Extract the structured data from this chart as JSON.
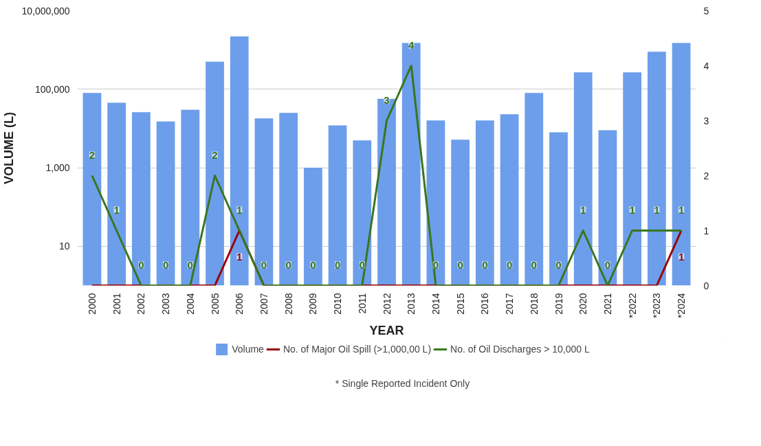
{
  "chart_data": {
    "type": "bar",
    "xlabel": "YEAR",
    "ylabel": "VOLUME (L)",
    "categories": [
      "2000",
      "2001",
      "2002",
      "2003",
      "2004",
      "2005",
      "2006",
      "2007",
      "2008",
      "2009",
      "2010",
      "2011",
      "2012",
      "2013",
      "2014",
      "2015",
      "2016",
      "2017",
      "2018",
      "2019",
      "2020",
      "2021",
      "*2022",
      "*2023",
      "*2024"
    ],
    "series": [
      {
        "name": "Volume",
        "color": "#6d9eeb",
        "values": [
          80000,
          45000,
          26000,
          15000,
          30000,
          500000,
          2200000,
          18000,
          25000,
          1000,
          12000,
          5000,
          57000,
          1500000,
          16000,
          5200,
          16000,
          23000,
          80000,
          8000,
          270000,
          9000,
          270000,
          900000,
          1500000
        ]
      },
      {
        "name": "No. of Major Oil Spill (>1,000,00 L)",
        "type": "line",
        "axis": "y2",
        "color": "#990000",
        "values": [
          0,
          0,
          0,
          0,
          0,
          0,
          1,
          0,
          0,
          0,
          0,
          0,
          0,
          0,
          0,
          0,
          0,
          0,
          0,
          0,
          0,
          0,
          0,
          0,
          1
        ],
        "value_labels": [
          null,
          null,
          null,
          null,
          null,
          null,
          "1",
          null,
          null,
          null,
          null,
          null,
          null,
          null,
          null,
          null,
          null,
          null,
          null,
          null,
          null,
          null,
          null,
          null,
          "1"
        ]
      },
      {
        "name": "No. of Oil Discharges > 10,000 L",
        "type": "line",
        "axis": "y2",
        "color": "#38761d",
        "values": [
          2,
          1,
          0,
          0,
          0,
          2,
          1,
          0,
          0,
          0,
          0,
          0,
          3,
          4,
          0,
          0,
          0,
          0,
          0,
          0,
          1,
          0,
          1,
          1,
          1
        ],
        "value_labels": [
          "2",
          "1",
          "0",
          "0",
          "0",
          "2",
          "1",
          "0",
          "0",
          "0",
          "0",
          "0",
          "3",
          "4",
          "0",
          "0",
          "0",
          "0",
          "0",
          "0",
          "1",
          "0",
          "1",
          "1",
          "1"
        ]
      }
    ],
    "log": true,
    "ylim": [
      1,
      10000000
    ],
    "yticks": [
      {
        "value": 10,
        "label": "10"
      },
      {
        "value": 1000,
        "label": "1,000"
      },
      {
        "value": 100000,
        "label": "100,000"
      },
      {
        "value": 10000000,
        "label": "10,000,000"
      }
    ],
    "y2lim": [
      0,
      5
    ],
    "y2ticks": [
      0,
      1,
      2,
      3,
      4,
      5
    ],
    "grid": "y",
    "legend": "bottom",
    "annotations": [
      "* Single Reported Incident Only"
    ]
  }
}
